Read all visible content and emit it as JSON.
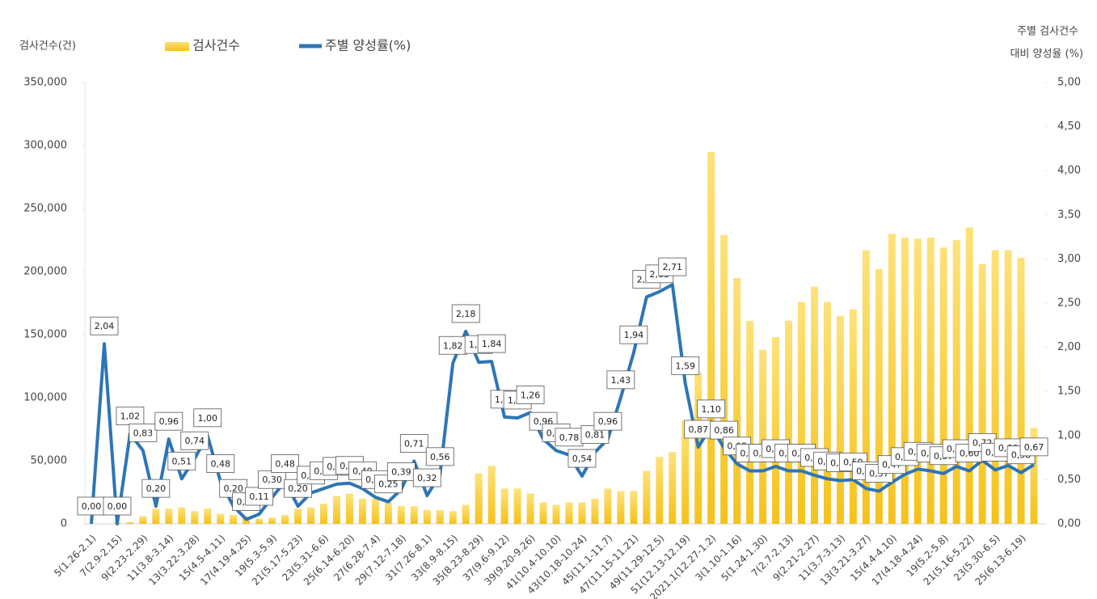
{
  "chart_data": {
    "type": "bar_line",
    "ylabel": "검사건수(건)",
    "y2label": [
      "주별 검사건수",
      "대비 양성율 (%)"
    ],
    "categories": [
      "5(1.26-2.1)",
      null,
      "7(2.9-2.15)",
      null,
      "9(2.23-2.29)",
      null,
      "11(3.8-3.14)",
      null,
      "13(3.22-3.28)",
      null,
      "15(4.5-4.11)",
      null,
      "17(4.19-4.25)",
      null,
      "19(5.3-5.9)",
      null,
      "21(5.17-5.23)",
      null,
      "23(5.31-6.6)",
      null,
      "25(6.14-6.20)",
      null,
      "27(6.28-7.4)",
      null,
      "29(7.12-7.18)",
      null,
      "31(7.26-8.1)",
      null,
      "33(8.9-8.15)",
      null,
      "35(8.23-8.29)",
      null,
      "37(9.6-9.12)",
      null,
      "39(9.20-9.26)",
      null,
      "41(10.4-10.10)",
      null,
      "43(10.18-10.24)",
      null,
      "45(11.1-11.7)",
      null,
      "47(11.15-11.21)",
      null,
      "49(11.29-12.5)",
      null,
      "51(12.13-12.19)",
      null,
      "2021.1(12.27-1.2)",
      null,
      "3(1.10-1.16)",
      null,
      "5(1.24-1.30)",
      null,
      "7(2.7-2.13)",
      null,
      "9(2.21-2.27)",
      null,
      "11(3.7-3.13)",
      null,
      "13(3.21-3.27)",
      null,
      "15(4.4-4.10)",
      null,
      "17(4.18-4.24)",
      null,
      "19(5.2-5.8)",
      null,
      "21(5.16-5.22)",
      null,
      "23(5.30-6.5)",
      null,
      "25(6.13-6.19)",
      null
    ],
    "series": [
      {
        "name": "검사건수",
        "type": "bar",
        "color": "#f7c630",
        "values": [
          0,
          0,
          1000,
          1500,
          6000,
          12000,
          12000,
          13000,
          10000,
          12000,
          8000,
          7000,
          6000,
          4000,
          5000,
          7000,
          12000,
          13000,
          16000,
          22000,
          24000,
          20000,
          20000,
          17000,
          14000,
          14000,
          11000,
          11000,
          10000,
          15000,
          40000,
          46000,
          28000,
          28000,
          24000,
          17000,
          15000,
          17000,
          17000,
          20000,
          28000,
          26000,
          26000,
          42000,
          53000,
          57000,
          82000,
          120000,
          295000,
          229000,
          195000,
          161000,
          138000,
          148000,
          161000,
          176000,
          188000,
          176000,
          165000,
          170000,
          217000,
          202000,
          230000,
          227000,
          226000,
          227000,
          219000,
          225000,
          235000,
          206000,
          217000,
          217000,
          211000,
          76000
        ]
      },
      {
        "name": "주별 양성률(%)",
        "type": "line",
        "axis": "y2",
        "color": "#2e75b6",
        "values": [
          0.0,
          2.04,
          0.0,
          1.02,
          0.83,
          0.2,
          0.96,
          0.51,
          0.74,
          1.0,
          0.48,
          0.2,
          0.05,
          0.11,
          0.3,
          0.48,
          0.2,
          0.35,
          0.4,
          0.45,
          0.46,
          0.4,
          0.3,
          0.25,
          0.39,
          0.71,
          0.32,
          0.56,
          1.82,
          2.18,
          1.83,
          1.84,
          1.21,
          1.2,
          1.26,
          0.96,
          0.83,
          0.78,
          0.54,
          0.81,
          0.96,
          1.43,
          1.94,
          2.57,
          2.63,
          2.71,
          1.59,
          0.87,
          1.1,
          0.86,
          0.68,
          0.6,
          0.6,
          0.65,
          0.6,
          0.6,
          0.55,
          0.51,
          0.49,
          0.5,
          0.4,
          0.37,
          0.47,
          0.56,
          0.62,
          0.6,
          0.57,
          0.65,
          0.6,
          0.72,
          0.61,
          0.66,
          0.58,
          0.67
        ],
        "value_labels": [
          "0,00",
          "2,04",
          "0,00",
          "1,02",
          "0,83",
          "0,20",
          "0,96",
          "0,51",
          "0,74",
          "1,00",
          "0,48",
          "0,20",
          "0,05",
          "0,11",
          "0,30",
          "0,48",
          "0,20",
          "0,35",
          "0,40",
          "0,45",
          "0,46",
          "0,40",
          "0,30",
          "0,25",
          "0,39",
          "0,71",
          "0,32",
          "0,56",
          "1,82",
          "2,18",
          "1,83",
          "1,84",
          "1,21",
          "1,20",
          "1,26",
          "0,96",
          "0,83",
          "0,78",
          "0,54",
          "0,81",
          "0,96",
          "1,43",
          "1,94",
          "2,57",
          "2,63",
          "2,71",
          "1,59",
          "0,87",
          "1,10",
          "0,86",
          "0,68",
          "0,60",
          "0,60",
          "0,65",
          "0,60",
          "0,60",
          "0,55",
          "0,51",
          "0,49",
          "0,50",
          "0,40",
          "0,37",
          "0,47",
          "0,56",
          "0,62",
          "0,60",
          "0,57",
          "0,65",
          "0,60",
          "0,72",
          "0,61",
          "0,66",
          "0,58",
          "0,67"
        ]
      }
    ],
    "ylim": [
      0,
      350000
    ],
    "yticks": [
      0,
      {
        "value": 50000,
        "label": "50,000"
      },
      {
        "value": 100000,
        "label": "100,000"
      },
      {
        "value": 150000,
        "label": "150,000"
      },
      {
        "value": 200000,
        "label": "200,000"
      },
      {
        "value": 250000,
        "label": "250,000"
      },
      {
        "value": 300000,
        "label": "300,000"
      },
      {
        "value": 350000,
        "label": "350,000"
      }
    ],
    "y2lim": [
      0,
      5
    ],
    "y2ticks": [
      {
        "value": 0,
        "label": "0,00"
      },
      {
        "value": 0.5,
        "label": "0,50"
      },
      {
        "value": 1,
        "label": "1,00"
      },
      {
        "value": 1.5,
        "label": "1,50"
      },
      {
        "value": 2,
        "label": "2,00"
      },
      {
        "value": 2.5,
        "label": "2,50"
      },
      {
        "value": 3,
        "label": "3,00"
      },
      {
        "value": 3.5,
        "label": "3,50"
      },
      {
        "value": 4,
        "label": "4,00"
      },
      {
        "value": 4.5,
        "label": "4,50"
      },
      {
        "value": 5,
        "label": "5,00"
      }
    ],
    "grid": false
  }
}
